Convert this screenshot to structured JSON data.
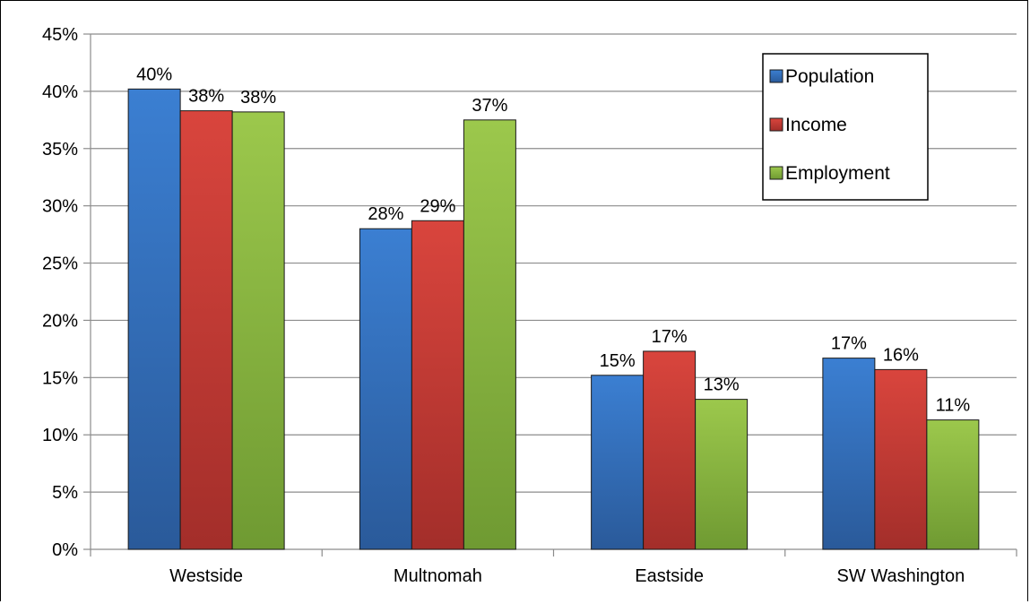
{
  "chart_data": {
    "type": "bar",
    "categories": [
      "Westside",
      "Multnomah",
      "Eastside",
      "SW Washington"
    ],
    "series": [
      {
        "name": "Population",
        "values": [
          40.2,
          28.0,
          15.2,
          16.7
        ],
        "labels": [
          "40%",
          "28%",
          "15%",
          "17%"
        ],
        "color": "#4472C4"
      },
      {
        "name": "Income",
        "values": [
          38.3,
          28.7,
          17.3,
          15.7
        ],
        "labels": [
          "38%",
          "29%",
          "17%",
          "16%"
        ],
        "color": "#C0504D"
      },
      {
        "name": "Employment",
        "values": [
          38.2,
          37.5,
          13.1,
          11.3
        ],
        "labels": [
          "38%",
          "37%",
          "13%",
          "11%"
        ],
        "color": "#9BBB59"
      }
    ],
    "ylim": [
      0,
      45
    ],
    "yticks": [
      0,
      5,
      10,
      15,
      20,
      25,
      30,
      35,
      40,
      45
    ],
    "ytick_labels": [
      "0%",
      "5%",
      "10%",
      "15%",
      "20%",
      "25%",
      "30%",
      "35%",
      "40%",
      "45%"
    ],
    "grid": true,
    "legend_position": "top-right",
    "title": "",
    "xlabel": "",
    "ylabel": ""
  }
}
